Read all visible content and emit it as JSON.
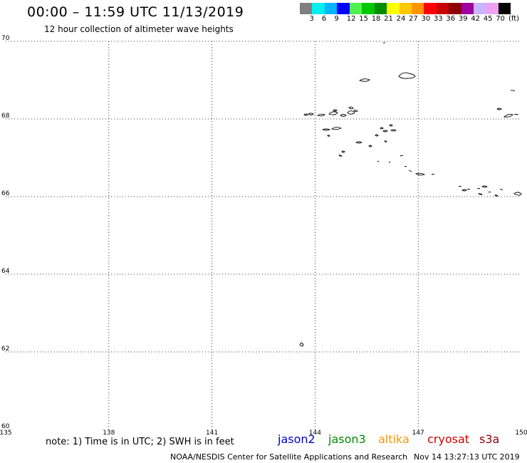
{
  "title": "00:00 – 11:59 UTC 11/13/2019",
  "subtitle": "12 hour collection of altimeter wave heights",
  "legend": {
    "colors": [
      "#808080",
      "#00f0f0",
      "#00b4ff",
      "#0000ff",
      "#50f050",
      "#00c800",
      "#008c00",
      "#ffff00",
      "#ffc800",
      "#ff9600",
      "#ff0000",
      "#c80000",
      "#8c0000",
      "#a000a0",
      "#c8b4ff",
      "#f0a0f0",
      "#000000"
    ],
    "tick_values": [
      "3",
      "6",
      "9",
      "12",
      "15",
      "18",
      "21",
      "24",
      "27",
      "30",
      "33",
      "36",
      "39",
      "42",
      "45",
      "70"
    ],
    "units": "(ft)"
  },
  "map": {
    "lon_range": [
      135,
      150
    ],
    "lat_range": [
      60,
      70
    ],
    "lon_ticks": [
      135,
      138,
      141,
      144,
      147,
      150
    ],
    "lat_ticks": [
      60,
      62,
      64,
      66,
      68,
      70
    ],
    "lon_labels": [
      "135",
      "138",
      "141",
      "144",
      "147",
      "150"
    ],
    "lat_labels": [
      "60",
      "62",
      "64",
      "66",
      "68",
      "70"
    ],
    "coastline_color": "#000000",
    "grid": "dotted"
  },
  "footer": {
    "note": "note: 1) Time is in UTC; 2) SWH is in feet",
    "satellites": [
      {
        "name": "jason2",
        "color": "#0000d2"
      },
      {
        "name": "jason3",
        "color": "#008c00"
      },
      {
        "name": "altika",
        "color": "#ff9600"
      },
      {
        "name": "cryosat",
        "color": "#d20000"
      },
      {
        "name": "s3a",
        "color": "#8c0000"
      }
    ],
    "credit": "NOAA/NESDIS Center for Satellite Applications and Research",
    "timestamp": "Nov 14 13:27:13 UTC 2019"
  }
}
